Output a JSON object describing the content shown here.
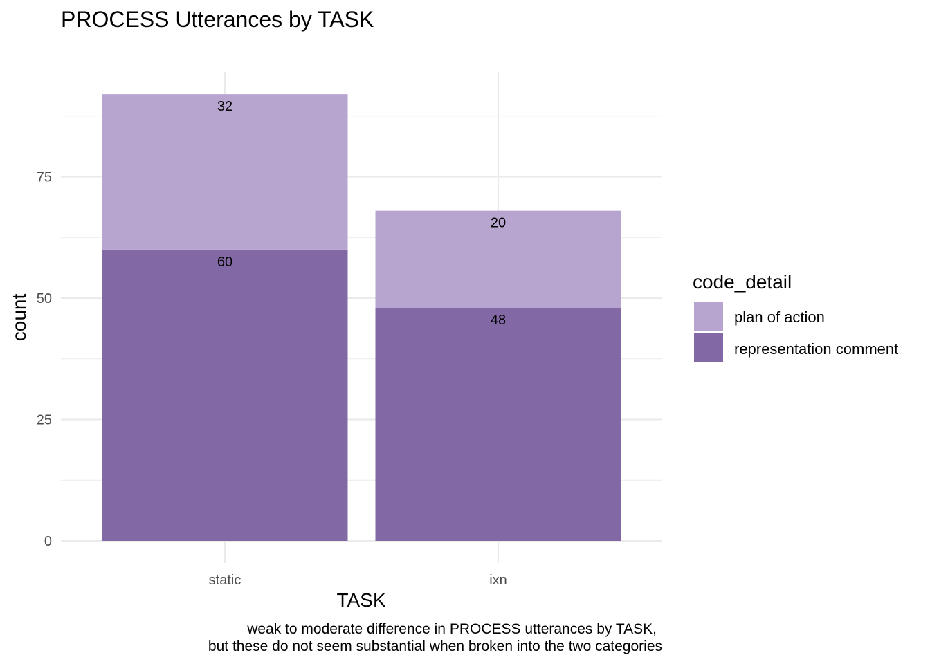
{
  "chart_data": {
    "type": "bar",
    "stacked": true,
    "title": "PROCESS Utterances by TASK",
    "xlabel": "TASK",
    "ylabel": "count",
    "categories": [
      "static",
      "ixn"
    ],
    "ylim": [
      0,
      96
    ],
    "yticks": [
      0,
      25,
      50,
      75
    ],
    "grid": true,
    "series": [
      {
        "name": "representation comment",
        "values": [
          60,
          48
        ],
        "color": "#8269a5"
      },
      {
        "name": "plan of action",
        "values": [
          32,
          20
        ],
        "color": "#b7a5cf"
      }
    ],
    "legend": {
      "title": "code_detail",
      "position": "right",
      "order": [
        "plan of action",
        "representation comment"
      ]
    },
    "caption_lines": [
      "weak to moderate difference in PROCESS utterances by TASK,",
      "but these do not seem substantial when broken into the two categories"
    ]
  }
}
